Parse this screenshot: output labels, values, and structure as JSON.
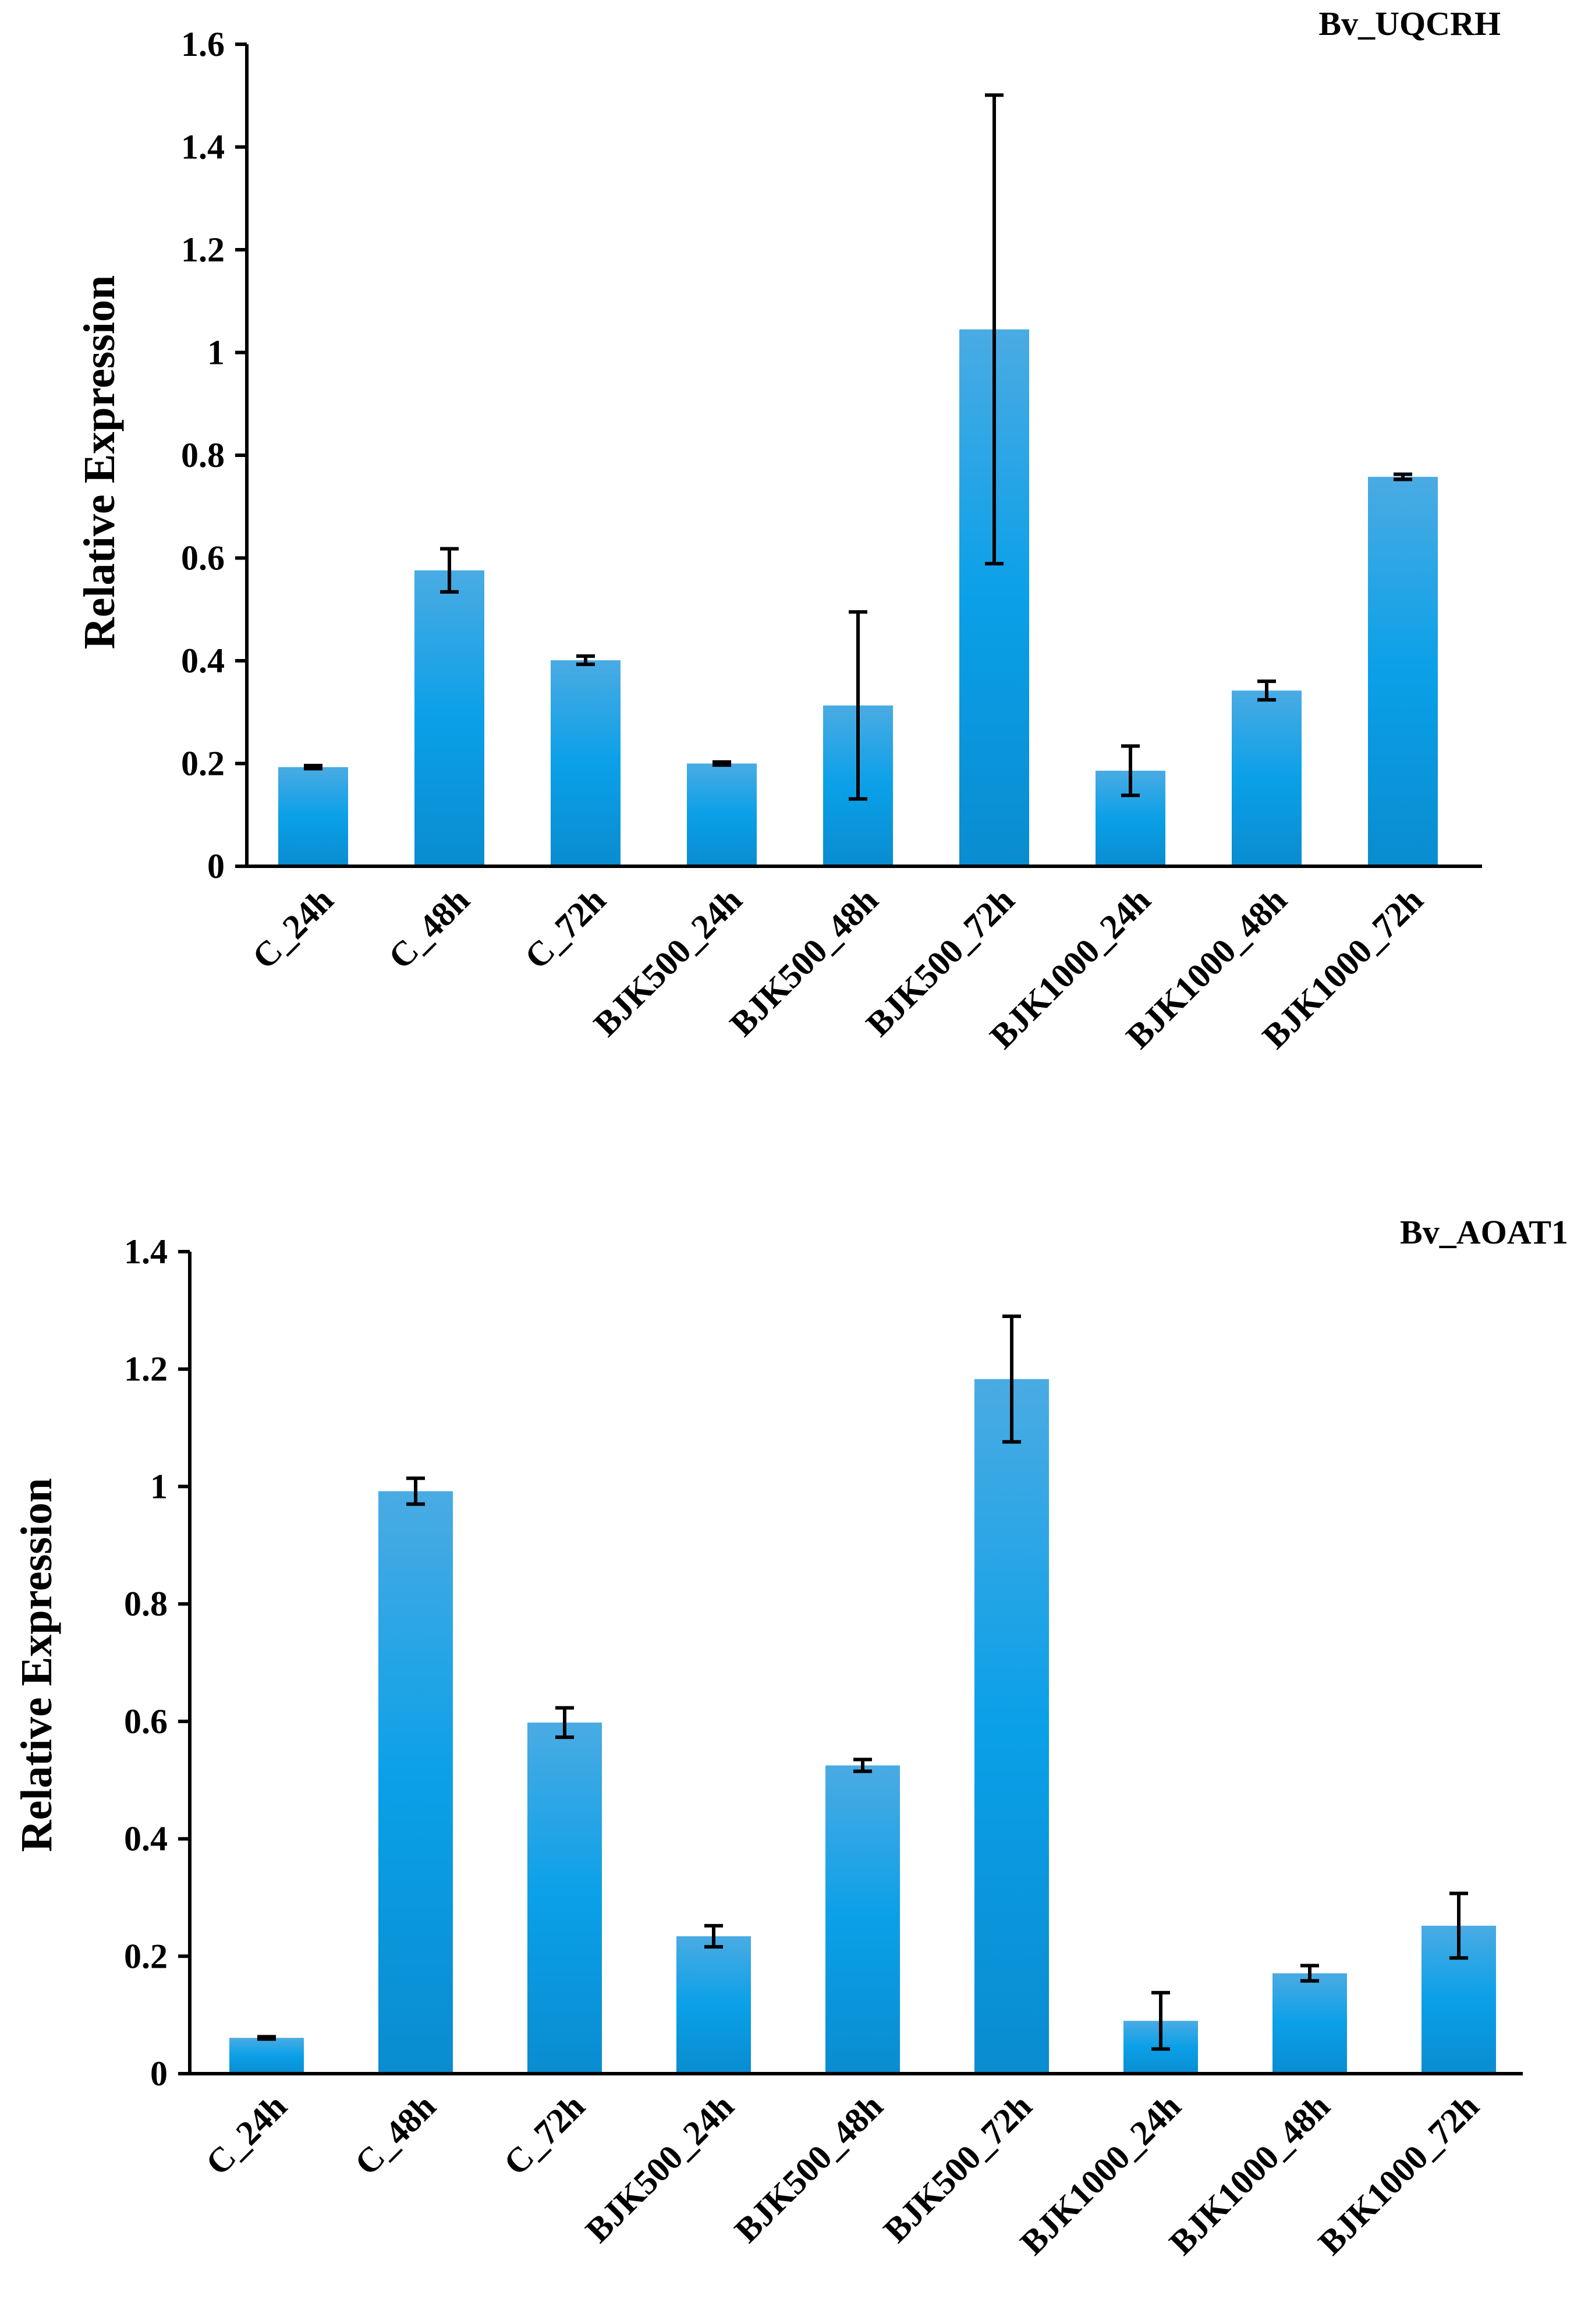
{
  "chart_data": [
    {
      "type": "bar",
      "title": "Bv_UQCRH",
      "ylabel": "Relative Expression",
      "xlabel": "",
      "ylim": [
        0,
        1.6
      ],
      "yticks": [
        0,
        0.2,
        0.4,
        0.6,
        0.8,
        1,
        1.2,
        1.4,
        1.6
      ],
      "ytick_labels": [
        "0",
        "0.2",
        "0.4",
        "0.6",
        "0.8",
        "1",
        "1.2",
        "1.4",
        "1.6"
      ],
      "categories": [
        "C_24h",
        "C_48h",
        "C_72h",
        "BJK500_24h",
        "BJK500_48h",
        "BJK500_72h",
        "BJK1000_24h",
        "BJK1000_48h",
        "BJK1000_72h"
      ],
      "values": [
        0.193,
        0.576,
        0.401,
        0.2,
        0.313,
        1.045,
        0.186,
        0.342,
        0.758
      ],
      "errors": [
        0.003,
        0.042,
        0.008,
        0.003,
        0.182,
        0.456,
        0.048,
        0.018,
        0.005
      ],
      "grid": false,
      "bar_color": "#1a9ee0"
    },
    {
      "type": "bar",
      "title": "Bv_AOAT1",
      "ylabel": "Relative Expression",
      "xlabel": "",
      "ylim": [
        0,
        1.4
      ],
      "yticks": [
        0,
        0.2,
        0.4,
        0.6,
        0.8,
        1,
        1.2,
        1.4
      ],
      "ytick_labels": [
        "0",
        "0.2",
        "0.4",
        "0.6",
        "0.8",
        "1",
        "1.2",
        "1.4"
      ],
      "categories": [
        "C_24h",
        "C_48h",
        "C_72h",
        "BJK500_24h",
        "BJK500_48h",
        "BJK500_72h",
        "BJK1000_24h",
        "BJK1000_48h",
        "BJK1000_72h"
      ],
      "values": [
        0.061,
        0.992,
        0.598,
        0.234,
        0.525,
        1.183,
        0.09,
        0.171,
        0.252
      ],
      "errors": [
        0.002,
        0.022,
        0.025,
        0.018,
        0.01,
        0.107,
        0.048,
        0.013,
        0.055
      ],
      "grid": false,
      "bar_color": "#1a9ee0"
    }
  ]
}
